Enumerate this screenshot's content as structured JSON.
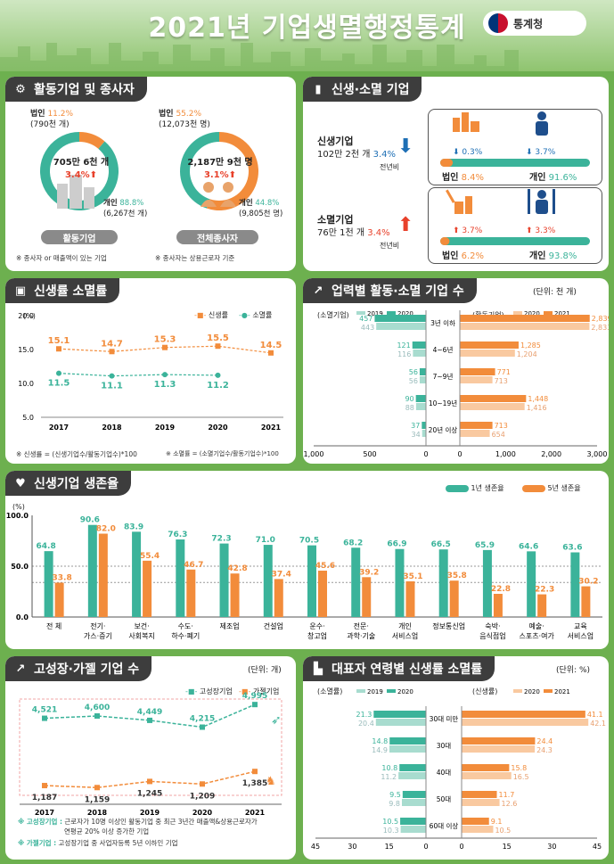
{
  "title": "2021년 기업생멸행정통계",
  "logo": "통계청",
  "sec1": {
    "title": "활동기업 및 종사자",
    "donut1": {
      "corp_label": "법인",
      "corp_pct": "11.2%",
      "corp_cnt": "(790천 개)",
      "center1": "705만 6천 개",
      "center2": "3.4%",
      "indiv_label": "개인",
      "indiv_pct": "88.8%",
      "indiv_cnt": "(6,267천 개)",
      "tag": "활동기업",
      "note": "※ 종사자 or 매출액이 있는 기업",
      "values": [
        11.2,
        88.8
      ]
    },
    "donut2": {
      "corp_label": "법인",
      "corp_pct": "55.2%",
      "corp_cnt": "(12,073천 명)",
      "center1": "2,187만 9천 명",
      "center2": "3.1%",
      "indiv_label": "개인",
      "indiv_pct": "44.8%",
      "indiv_cnt": "(9,805천 명)",
      "tag": "전체종사자",
      "note": "※ 종사자는 상용근로자 기준",
      "values": [
        55.2,
        44.8
      ]
    }
  },
  "sec2": {
    "title": "신생·소멸 기업",
    "birth": {
      "label": "신생기업",
      "value": "102만 2천 개",
      "pct": "3.4%",
      "sub": "전년비",
      "corp_chg": "0.3%",
      "indiv_chg": "3.7%",
      "corp": "법인",
      "corp_pct": "8.4%",
      "indiv": "개인",
      "indiv_pct": "91.6%",
      "share": [
        8.4,
        91.6
      ]
    },
    "death": {
      "label": "소멸기업",
      "value": "76만 1천 개",
      "pct": "3.4%",
      "sub": "전년비",
      "corp_chg": "3.7%",
      "indiv_chg": "3.3%",
      "corp": "법인",
      "corp_pct": "6.2%",
      "indiv": "개인",
      "indiv_pct": "93.8%",
      "share": [
        6.2,
        93.8
      ]
    }
  },
  "sec3": {
    "title": "신생률 소멸률",
    "unit": "(%)",
    "legend1": "신생률",
    "legend2": "소멸률",
    "note1": "※ 신생률 = (신생기업수/활동기업수)*100",
    "note2": "※ 소멸률 = (소멸기업수/활동기업수)*100"
  },
  "sec4": {
    "title": "업력별 활동·소멸 기업 수",
    "unit": "(단위: 천 개)",
    "left_label": "(소멸기업)",
    "right_label": "(활동기업)"
  },
  "sec5": {
    "title": "신생기업 생존율",
    "unit": "(%)",
    "legend1": "1년 생존율",
    "legend2": "5년 생존율"
  },
  "sec6": {
    "title": "고성장·가젤 기업 수",
    "unit": "(단위: 개)",
    "legend1": "고성장기업",
    "legend2": "가젤기업",
    "note1_key": "※ 고성장기업 :",
    "note1": "근로자가 10명 이상인 활동기업 중 최근 3년간 매출액&상용근로자가",
    "note1b": "연평균 20% 이상 증가한 기업",
    "note2_key": "※ 가젤기업 :",
    "note2": "고성장기업 중 사업자등록 5년 이하인 기업"
  },
  "sec7": {
    "title": "대표자 연령별 신생률 소멸률",
    "unit": "(단위: %)",
    "left_label": "(소멸률)",
    "right_label": "(신생률)"
  },
  "chart_data": [
    {
      "type": "line",
      "title": "신생률 소멸률",
      "x": [
        "2017",
        "2018",
        "2019",
        "2020",
        "2021"
      ],
      "ylim": [
        5,
        20
      ],
      "yticks": [
        "20.0",
        "15.0",
        "10.0",
        "5.0"
      ],
      "series": [
        {
          "name": "신생률",
          "values": [
            15.1,
            14.7,
            15.3,
            15.5,
            14.5
          ],
          "labels": [
            "15.1",
            "14.7",
            "15.3",
            "15.5",
            "14.5"
          ]
        },
        {
          "name": "소멸률",
          "values": [
            11.5,
            11.1,
            11.3,
            11.2,
            null
          ],
          "labels": [
            "11.5",
            "11.1",
            "11.3",
            "11.2",
            ""
          ]
        }
      ]
    },
    {
      "type": "bar",
      "title": "업력별 활동·소멸 기업 수",
      "categories": [
        "3년 이하",
        "4~6년",
        "7~9년",
        "10~19년",
        "20년 이상"
      ],
      "left": {
        "series": [
          {
            "name": "2019",
            "values": [
              443,
              116,
              56,
              88,
              34
            ]
          },
          {
            "name": "2020",
            "values": [
              457,
              121,
              56,
              90,
              37
            ]
          }
        ],
        "xlim": [
          0,
          1000
        ],
        "ticks": [
          "1,000",
          "500",
          "0"
        ]
      },
      "right": {
        "series": [
          {
            "name": "2020",
            "values": [
              2833,
              1204,
              713,
              1416,
              654
            ]
          },
          {
            "name": "2021",
            "values": [
              2839,
              1285,
              771,
              1448,
              713
            ]
          }
        ],
        "xlim": [
          0,
          3000
        ],
        "ticks": [
          "0",
          "1,000",
          "2,000",
          "3,000"
        ]
      }
    },
    {
      "type": "bar",
      "title": "신생기업 생존율",
      "categories": [
        "전 체",
        "전기·|가스·증기",
        "보건·|사회복지",
        "수도·|하수·폐기",
        "제조업",
        "건설업",
        "운수·|창고업",
        "전문·|과학·기술",
        "개인|서비스업",
        "정보통신업",
        "숙박·|음식점업",
        "예술·|스포츠·여가",
        "교육|서비스업"
      ],
      "ylim": [
        0,
        100
      ],
      "yticks": [
        "100.0",
        "50.0",
        "0.0"
      ],
      "series": [
        {
          "name": "1년 생존율",
          "values": [
            64.8,
            90.6,
            83.9,
            76.3,
            72.3,
            71.0,
            70.5,
            68.2,
            66.9,
            66.5,
            65.9,
            64.6,
            63.6
          ],
          "labels": [
            "64.8",
            "90.6",
            "83.9",
            "76.3",
            "72.3",
            "71.0",
            "70.5",
            "68.2",
            "66.9",
            "66.5",
            "65.9",
            "64.6",
            "63.6"
          ]
        },
        {
          "name": "5년 생존율",
          "values": [
            33.8,
            82.0,
            55.4,
            46.7,
            42.8,
            37.4,
            45.6,
            39.2,
            35.1,
            35.8,
            22.8,
            22.3,
            30.2
          ],
          "labels": [
            "33.8",
            "82.0",
            "55.4",
            "46.7",
            "42.8",
            "37.4",
            "45.6",
            "39.2",
            "35.1",
            "35.8",
            "22.8",
            "22.3",
            "30.2"
          ]
        }
      ]
    },
    {
      "type": "line",
      "title": "고성장·가젤 기업 수",
      "x": [
        "2017",
        "2018",
        "2019",
        "2020",
        "2021"
      ],
      "series": [
        {
          "name": "고성장기업",
          "values": [
            4521,
            4600,
            4449,
            4215,
            4995
          ],
          "labels": [
            "4,521",
            "4,600",
            "4,449",
            "4,215",
            "4,995"
          ]
        },
        {
          "name": "가젤기업",
          "values": [
            1187,
            1159,
            1245,
            1209,
            1385
          ],
          "labels": [
            "1,187",
            "1,159",
            "1,245",
            "1,209",
            "1,385"
          ]
        }
      ]
    },
    {
      "type": "bar",
      "title": "대표자 연령별 신생률 소멸률",
      "categories": [
        "30대 미만",
        "30대",
        "40대",
        "50대",
        "60대 이상"
      ],
      "left": {
        "series": [
          {
            "name": "2019",
            "values": [
              20.4,
              14.9,
              11.2,
              9.8,
              10.3
            ]
          },
          {
            "name": "2020",
            "values": [
              21.3,
              14.8,
              10.8,
              9.5,
              10.5
            ]
          }
        ],
        "xlim": [
          0,
          45
        ],
        "ticks": [
          "45",
          "30",
          "15",
          "0"
        ]
      },
      "right": {
        "series": [
          {
            "name": "2020",
            "values": [
              42.1,
              24.3,
              16.5,
              12.6,
              10.5
            ]
          },
          {
            "name": "2021",
            "values": [
              41.1,
              24.4,
              15.8,
              11.7,
              9.1
            ]
          }
        ],
        "xlim": [
          0,
          45
        ],
        "ticks": [
          "0",
          "15",
          "30",
          "45"
        ]
      }
    }
  ],
  "colors": {
    "teal": "#3bb39a",
    "teal_light": "#a8dccf",
    "orange": "#f28c3b",
    "orange_light": "#f9c9a0",
    "red": "#e8412b",
    "blue": "#1e6fb5"
  }
}
